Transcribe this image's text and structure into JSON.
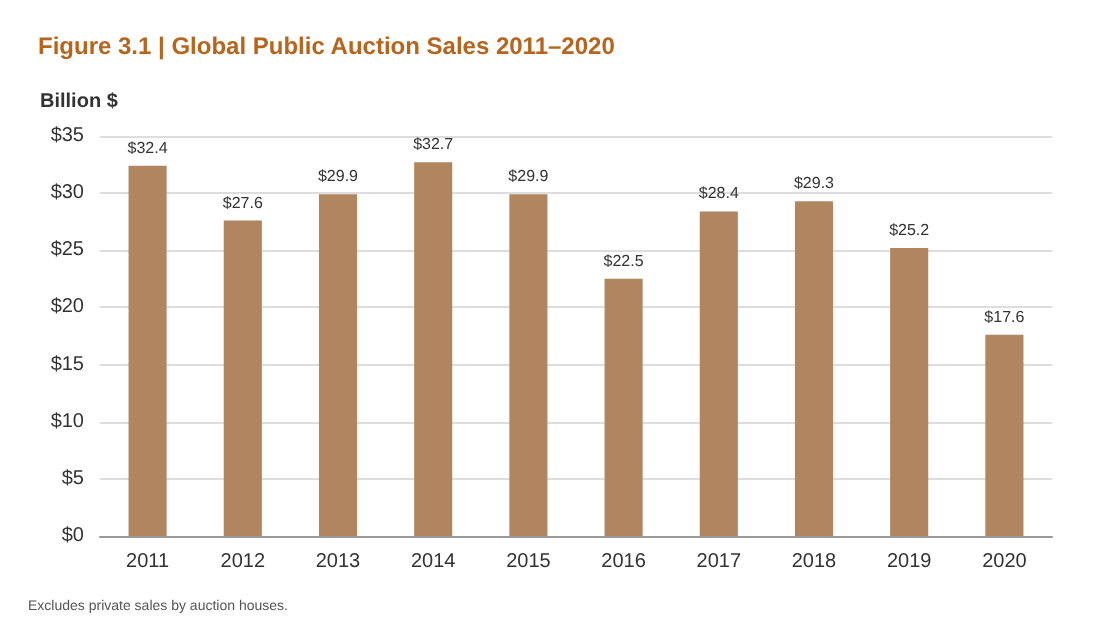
{
  "chart_data": {
    "type": "bar",
    "title": "Figure 3.1 | Global Public Auction Sales 2011–2020",
    "ylabel": "Billion $",
    "categories": [
      "2011",
      "2012",
      "2013",
      "2014",
      "2015",
      "2016",
      "2017",
      "2018",
      "2019",
      "2020"
    ],
    "values": [
      32.4,
      27.6,
      29.9,
      32.7,
      29.9,
      22.5,
      28.4,
      29.3,
      25.2,
      17.6
    ],
    "value_labels": [
      "$32.4",
      "$27.6",
      "$29.9",
      "$32.7",
      "$29.9",
      "$22.5",
      "$28.4",
      "$29.3",
      "$25.2",
      "$17.6"
    ],
    "color": "#b08560",
    "ylim": [
      0,
      35
    ],
    "yticks": [
      {
        "value": 0,
        "label": "$0"
      },
      {
        "value": 5,
        "label": "$5"
      },
      {
        "value": 10,
        "label": "$10"
      },
      {
        "value": 15,
        "label": "$15"
      },
      {
        "value": 20,
        "label": "$20"
      },
      {
        "value": 25,
        "label": "$25"
      },
      {
        "value": 30,
        "label": "$30"
      },
      {
        "value": 35,
        "label": "$35"
      }
    ],
    "grid": "y",
    "annotations": [
      "Excludes private sales by auction houses."
    ]
  }
}
